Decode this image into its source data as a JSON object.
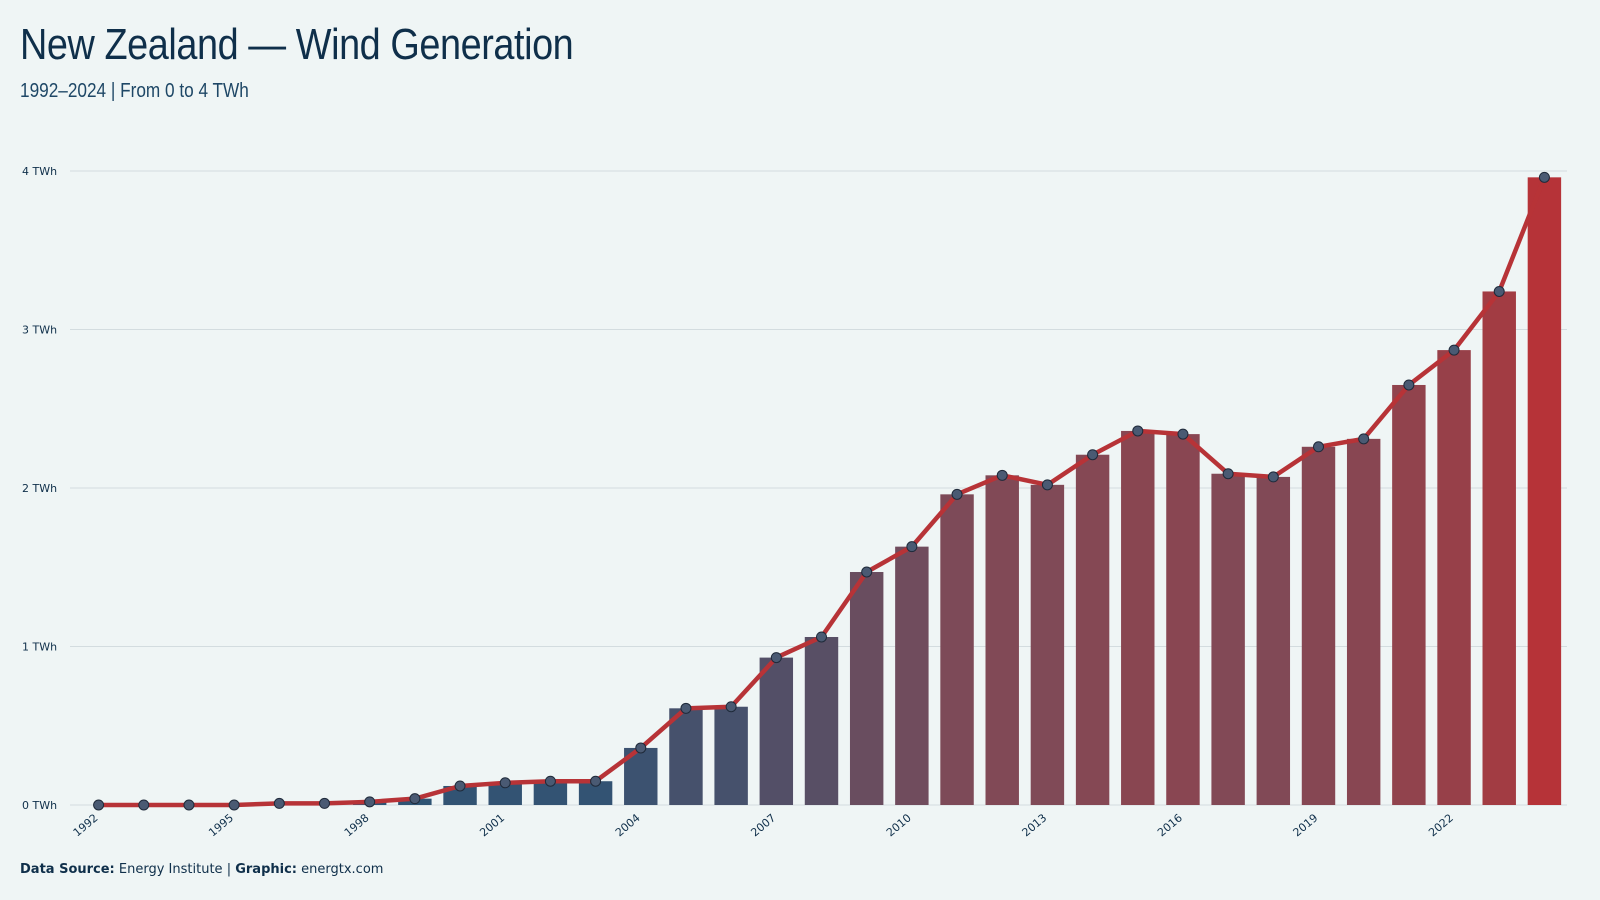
{
  "header": {
    "title": "New Zealand — Wind Generation",
    "subtitle": "1992–2024 | From 0 to 4 TWh"
  },
  "footer": {
    "source_label": "Data Source:",
    "source_value": "Energy Institute",
    "separator": "|",
    "graphic_label": "Graphic:",
    "graphic_value": "energtx.com"
  },
  "colors": {
    "background": "#eff5f5",
    "line": "#b73337",
    "bar_start": "#2d5475",
    "bar_mid": "#7f4a57",
    "bar_end": "#b73337",
    "marker_fill": "#4a5a73",
    "gridline": "#d3dcdf",
    "text": "#0f2f4a"
  },
  "chart_data": {
    "type": "bar",
    "title": "New Zealand — Wind Generation",
    "subtitle": "1992–2024 | From 0 to 4 TWh",
    "x": [
      1992,
      1993,
      1994,
      1995,
      1996,
      1997,
      1998,
      1999,
      2000,
      2001,
      2002,
      2003,
      2004,
      2005,
      2006,
      2007,
      2008,
      2009,
      2010,
      2011,
      2012,
      2013,
      2014,
      2015,
      2016,
      2017,
      2018,
      2019,
      2020,
      2021,
      2022,
      2023,
      2024
    ],
    "x_tick_labels": [
      "1992",
      "1995",
      "1998",
      "2001",
      "2004",
      "2007",
      "2010",
      "2013",
      "2016",
      "2019",
      "2022"
    ],
    "values": [
      0.0,
      0.0,
      0.0,
      0.0,
      0.01,
      0.01,
      0.02,
      0.04,
      0.12,
      0.14,
      0.15,
      0.15,
      0.36,
      0.61,
      0.62,
      0.93,
      1.06,
      1.47,
      1.63,
      1.96,
      2.08,
      2.02,
      2.21,
      2.36,
      2.34,
      2.09,
      2.07,
      2.26,
      2.31,
      2.65,
      2.87,
      3.24,
      3.96
    ],
    "ylim": [
      0,
      4
    ],
    "y_ticks": [
      0,
      1,
      2,
      3,
      4
    ],
    "y_tick_labels": [
      "0 TWh",
      "1 TWh",
      "2 TWh",
      "3 TWh",
      "4 TWh"
    ],
    "overlay": "line with circle markers",
    "grid": "horizontal",
    "legend": "none"
  }
}
